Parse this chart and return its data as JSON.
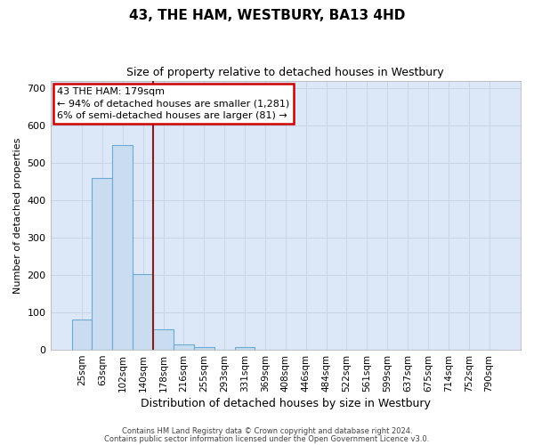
{
  "title": "43, THE HAM, WESTBURY, BA13 4HD",
  "subtitle": "Size of property relative to detached houses in Westbury",
  "xlabel": "Distribution of detached houses by size in Westbury",
  "ylabel": "Number of detached properties",
  "footnote1": "Contains HM Land Registry data © Crown copyright and database right 2024.",
  "footnote2": "Contains public sector information licensed under the Open Government Licence v3.0.",
  "categories": [
    "25sqm",
    "63sqm",
    "102sqm",
    "140sqm",
    "178sqm",
    "216sqm",
    "255sqm",
    "293sqm",
    "331sqm",
    "369sqm",
    "408sqm",
    "446sqm",
    "484sqm",
    "522sqm",
    "561sqm",
    "599sqm",
    "637sqm",
    "675sqm",
    "714sqm",
    "752sqm",
    "790sqm"
  ],
  "values": [
    80,
    460,
    547,
    203,
    55,
    15,
    8,
    0,
    8,
    0,
    0,
    0,
    0,
    0,
    0,
    0,
    0,
    0,
    0,
    0,
    0
  ],
  "bar_color": "#c9dcf0",
  "bar_edge_color": "#6aaad4",
  "vline_color": "#8b1a1a",
  "vline_x_index": 3.5,
  "annotation_line1": "43 THE HAM: 179sqm",
  "annotation_line2": "← 94% of detached houses are smaller (1,281)",
  "annotation_line3": "6% of semi-detached houses are larger (81) →",
  "annotation_box_edgecolor": "#cc0000",
  "ylim_max": 720,
  "yticks": [
    0,
    100,
    200,
    300,
    400,
    500,
    600,
    700
  ],
  "grid_color": "#c8d4e8",
  "bg_color": "#dce8f8",
  "title_fontsize": 11,
  "subtitle_fontsize": 9,
  "ylabel_fontsize": 8,
  "xlabel_fontsize": 9,
  "tick_fontsize": 7.5,
  "ann_fontsize": 8,
  "footnote_fontsize": 6
}
